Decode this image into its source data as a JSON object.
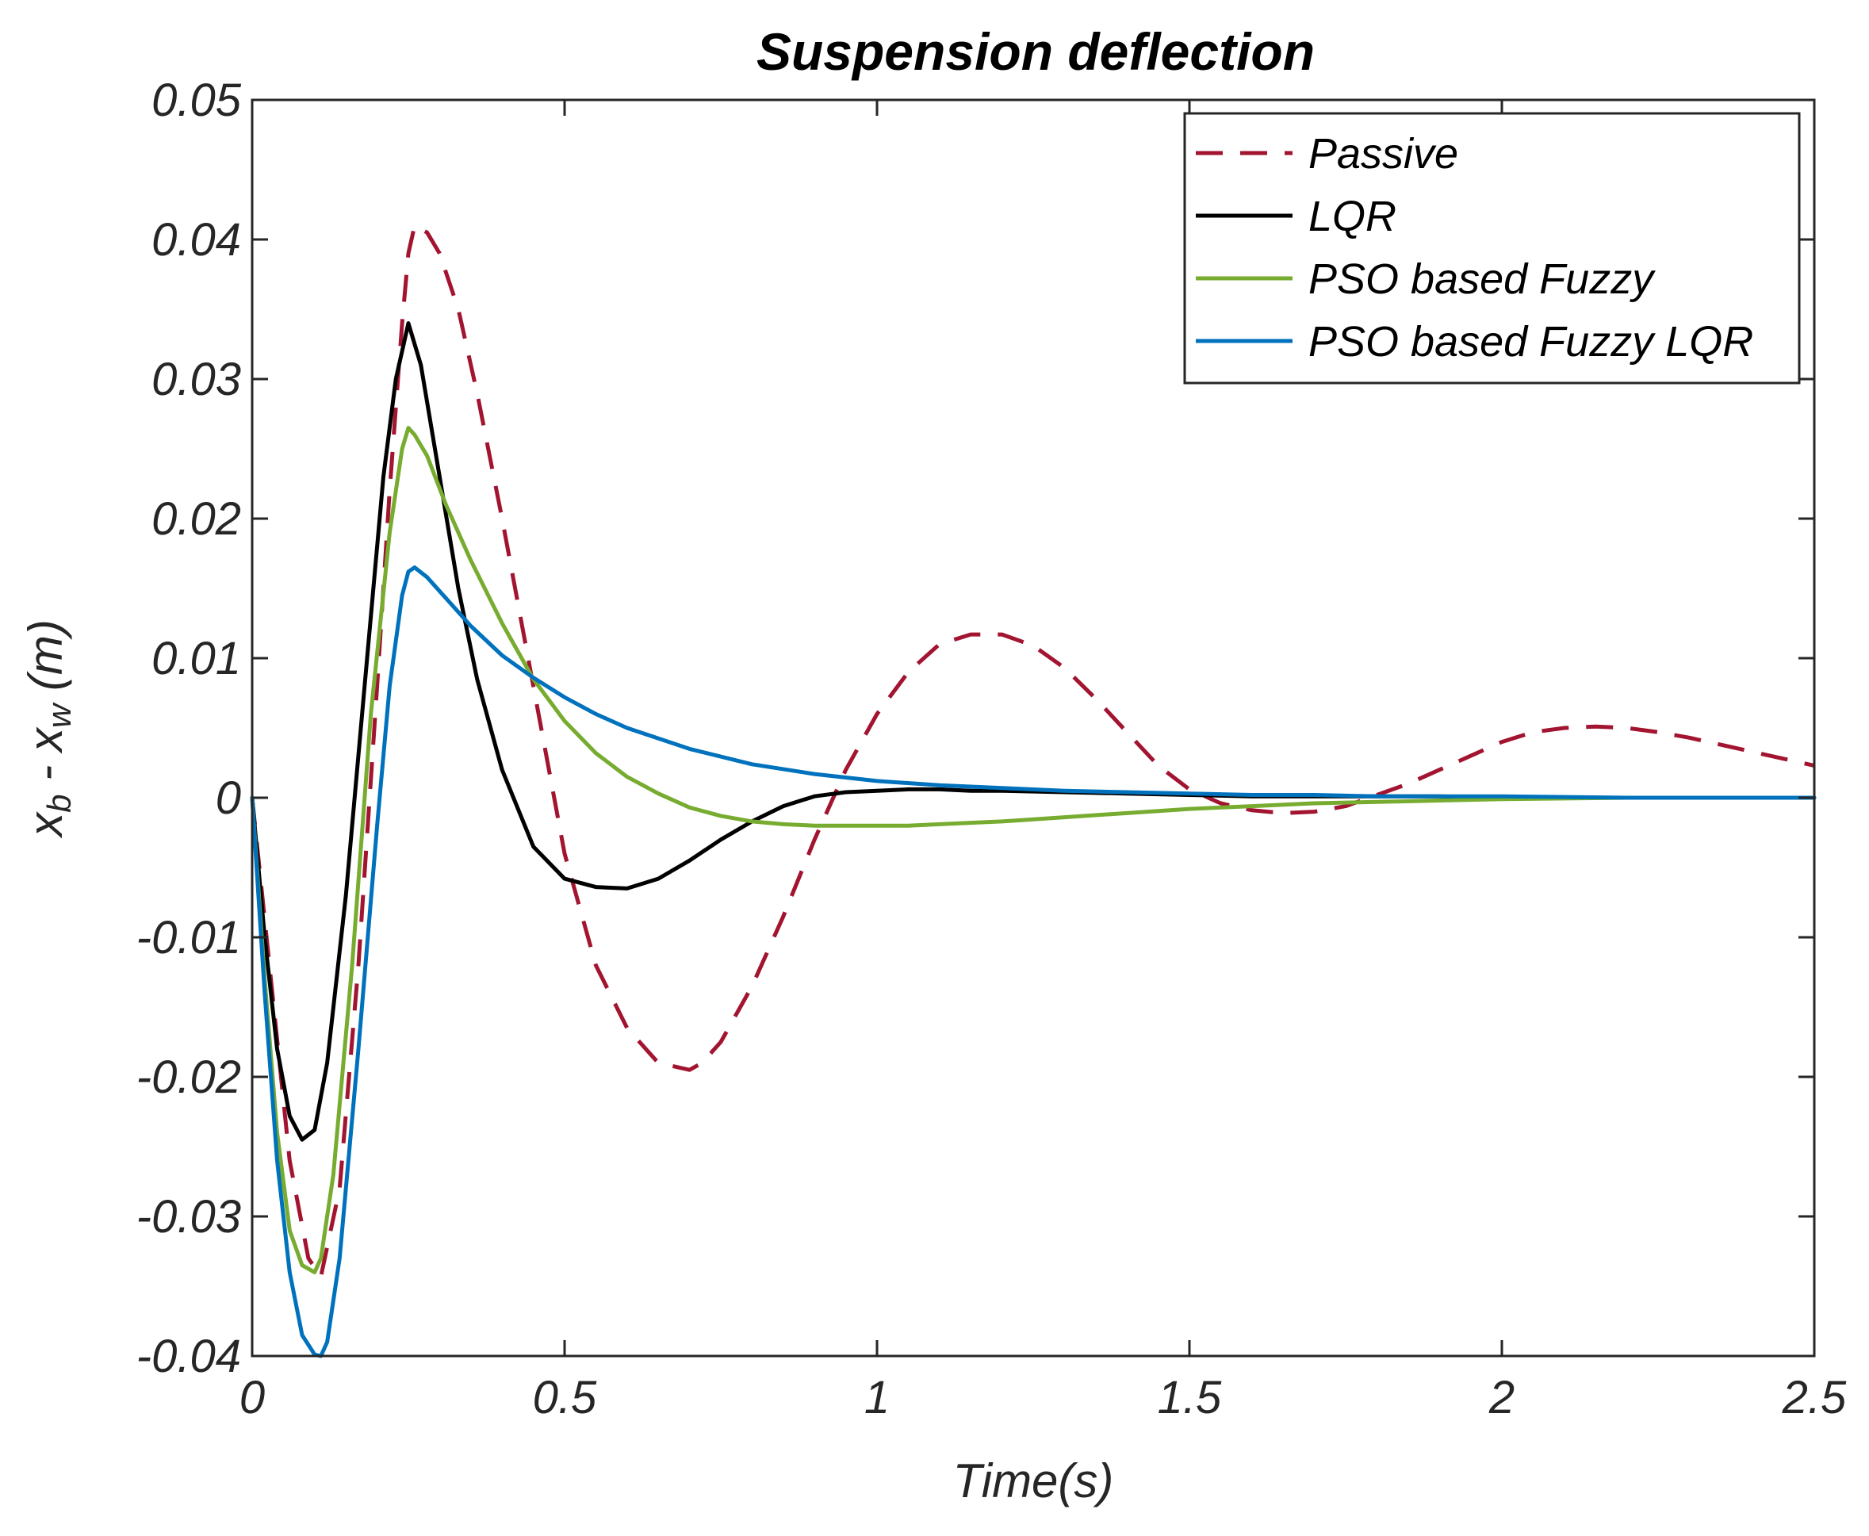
{
  "chart_data": {
    "type": "line",
    "title": "Suspension deflection",
    "xlabel": "Time(s)",
    "ylabel": {
      "base": "x",
      "sub1": "b",
      "mid": " - x",
      "sub2": "w",
      "unit": " (m)"
    },
    "xlim": [
      0,
      2.5
    ],
    "ylim": [
      -0.04,
      0.05
    ],
    "xticks": [
      0,
      0.5,
      1,
      1.5,
      2,
      2.5
    ],
    "xtick_labels": [
      "0",
      "0.5",
      "1",
      "1.5",
      "2",
      "2.5"
    ],
    "yticks": [
      -0.04,
      -0.03,
      -0.02,
      -0.01,
      0,
      0.01,
      0.02,
      0.03,
      0.04,
      0.05
    ],
    "ytick_labels": [
      "-0.04",
      "-0.03",
      "-0.02",
      "-0.01",
      "0",
      "0.01",
      "0.02",
      "0.03",
      "0.04",
      "0.05"
    ],
    "grid": false,
    "legend_position": "top-right",
    "series": [
      {
        "name": "Passive",
        "color": "#A2142F",
        "dash": true,
        "x": [
          0,
          0.03,
          0.06,
          0.09,
          0.11,
          0.14,
          0.17,
          0.2,
          0.22,
          0.24,
          0.25,
          0.26,
          0.28,
          0.3,
          0.33,
          0.36,
          0.4,
          0.45,
          0.5,
          0.55,
          0.6,
          0.65,
          0.7,
          0.72,
          0.75,
          0.8,
          0.85,
          0.9,
          0.95,
          1.0,
          1.05,
          1.1,
          1.15,
          1.2,
          1.25,
          1.3,
          1.35,
          1.4,
          1.45,
          1.5,
          1.55,
          1.6,
          1.65,
          1.7,
          1.75,
          1.8,
          1.85,
          1.9,
          1.95,
          2.0,
          2.05,
          2.1,
          2.15,
          2.2,
          2.25,
          2.3,
          2.35,
          2.4,
          2.45,
          2.5
        ],
        "y": [
          0,
          -0.013,
          -0.026,
          -0.033,
          -0.0343,
          -0.028,
          -0.012,
          0.008,
          0.022,
          0.034,
          0.039,
          0.041,
          0.0405,
          0.039,
          0.035,
          0.029,
          0.02,
          0.008,
          -0.004,
          -0.012,
          -0.0165,
          -0.019,
          -0.0195,
          -0.019,
          -0.0175,
          -0.0135,
          -0.0085,
          -0.003,
          0.002,
          0.006,
          0.009,
          0.011,
          0.0117,
          0.0117,
          0.0109,
          0.0093,
          0.0071,
          0.0047,
          0.0023,
          0.0006,
          -0.0004,
          -0.0009,
          -0.0011,
          -0.001,
          -0.0006,
          0.0002,
          0.001,
          0.002,
          0.003,
          0.004,
          0.0047,
          0.005,
          0.0051,
          0.005,
          0.0047,
          0.0043,
          0.0038,
          0.0033,
          0.0028,
          0.0023
        ]
      },
      {
        "name": "LQR",
        "color": "#000000",
        "dash": false,
        "x": [
          0,
          0.02,
          0.04,
          0.06,
          0.08,
          0.1,
          0.12,
          0.15,
          0.18,
          0.21,
          0.23,
          0.25,
          0.27,
          0.3,
          0.33,
          0.36,
          0.4,
          0.45,
          0.5,
          0.55,
          0.6,
          0.65,
          0.7,
          0.75,
          0.8,
          0.85,
          0.9,
          0.95,
          1.0,
          1.05,
          1.1,
          1.15,
          1.2,
          1.3,
          1.4,
          1.5,
          1.6,
          1.7,
          1.8,
          1.9,
          2.0,
          2.2,
          2.5
        ],
        "y": [
          0,
          -0.01,
          -0.018,
          -0.0228,
          -0.0245,
          -0.0238,
          -0.019,
          -0.007,
          0.008,
          0.023,
          0.03,
          0.034,
          0.031,
          0.023,
          0.015,
          0.0085,
          0.002,
          -0.0035,
          -0.0058,
          -0.0064,
          -0.0065,
          -0.0058,
          -0.0045,
          -0.003,
          -0.0017,
          -0.0006,
          0.0001,
          0.0004,
          0.0005,
          0.0006,
          0.0006,
          0.0005,
          0.0005,
          0.0004,
          0.0003,
          0.0002,
          0.0001,
          0.0001,
          0.0001,
          0.0001,
          0,
          0,
          0
        ]
      },
      {
        "name": "PSO based Fuzzy",
        "color": "#77AC30",
        "dash": false,
        "x": [
          0,
          0.02,
          0.04,
          0.06,
          0.08,
          0.1,
          0.11,
          0.13,
          0.16,
          0.19,
          0.22,
          0.24,
          0.25,
          0.26,
          0.28,
          0.31,
          0.35,
          0.4,
          0.45,
          0.5,
          0.55,
          0.6,
          0.65,
          0.7,
          0.75,
          0.8,
          0.85,
          0.9,
          0.95,
          1.0,
          1.05,
          1.1,
          1.2,
          1.3,
          1.4,
          1.5,
          1.6,
          1.7,
          1.8,
          1.9,
          2.0,
          2.2,
          2.5
        ],
        "y": [
          0,
          -0.013,
          -0.024,
          -0.031,
          -0.0335,
          -0.034,
          -0.033,
          -0.027,
          -0.012,
          0.006,
          0.019,
          0.025,
          0.0265,
          0.026,
          0.0245,
          0.021,
          0.017,
          0.0125,
          0.0085,
          0.0055,
          0.0032,
          0.0015,
          0.0003,
          -0.0007,
          -0.0013,
          -0.0017,
          -0.0019,
          -0.002,
          -0.002,
          -0.002,
          -0.002,
          -0.0019,
          -0.0017,
          -0.0014,
          -0.0011,
          -0.0008,
          -0.0006,
          -0.0004,
          -0.0003,
          -0.0002,
          -0.0001,
          0,
          0
        ]
      },
      {
        "name": "PSO based Fuzzy LQR",
        "color": "#0072BD",
        "dash": false,
        "x": [
          0,
          0.02,
          0.04,
          0.06,
          0.08,
          0.1,
          0.11,
          0.12,
          0.14,
          0.17,
          0.2,
          0.22,
          0.24,
          0.25,
          0.26,
          0.28,
          0.31,
          0.35,
          0.4,
          0.45,
          0.5,
          0.55,
          0.6,
          0.7,
          0.8,
          0.9,
          1.0,
          1.1,
          1.2,
          1.3,
          1.4,
          1.5,
          1.6,
          1.7,
          1.8,
          2.0,
          2.2,
          2.5
        ],
        "y": [
          0,
          -0.014,
          -0.026,
          -0.034,
          -0.0385,
          -0.0399,
          -0.04,
          -0.039,
          -0.033,
          -0.018,
          -0.002,
          0.008,
          0.0145,
          0.0162,
          0.0165,
          0.0158,
          0.0143,
          0.0123,
          0.0102,
          0.0086,
          0.0072,
          0.006,
          0.005,
          0.0035,
          0.0024,
          0.0017,
          0.0012,
          0.0009,
          0.0007,
          0.0005,
          0.0004,
          0.0003,
          0.0002,
          0.0002,
          0.0001,
          0.0001,
          0,
          0
        ]
      }
    ]
  }
}
